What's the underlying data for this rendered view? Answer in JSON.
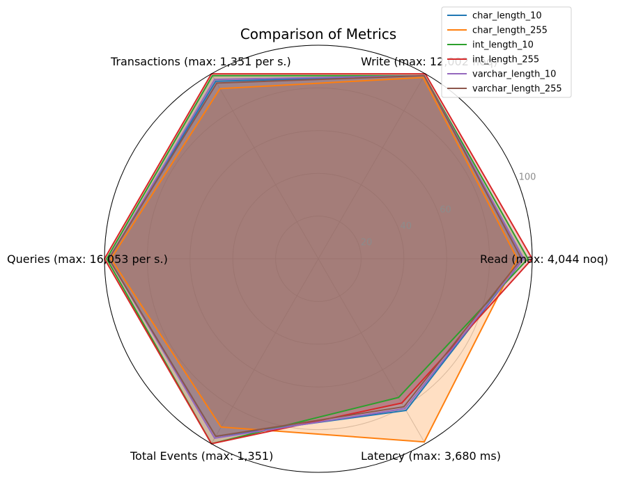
{
  "chart_data": {
    "type": "radar",
    "title": "Comparison of Metrics",
    "axes": [
      "Read (max: 4,044 noq)",
      "Write (max: 12,002 noq)",
      "Transactions (max: 1,351 per s.)",
      "Queries (max: 16,053 per s.)",
      "Total Events (max: 1,351)",
      "Latency (max: 3,680 ms)"
    ],
    "r_ticks": [
      20,
      40,
      60,
      100
    ],
    "rlim": [
      0,
      100
    ],
    "grid": true,
    "legend_position": "top-right",
    "series": [
      {
        "name": "char_length_10",
        "color": "#1f77b4",
        "values": [
          96,
          99,
          96,
          98,
          96,
          82
        ]
      },
      {
        "name": "char_length_255",
        "color": "#ff7f0e",
        "values": [
          93,
          98,
          92,
          97,
          91,
          99
        ]
      },
      {
        "name": "int_length_10",
        "color": "#2ca02c",
        "values": [
          98,
          99,
          99,
          99,
          100,
          75
        ]
      },
      {
        "name": "int_length_255",
        "color": "#d62728",
        "values": [
          100,
          100,
          100,
          100,
          100,
          78
        ]
      },
      {
        "name": "varchar_length_10",
        "color": "#9467bd",
        "values": [
          96,
          99,
          97,
          98,
          97,
          81
        ]
      },
      {
        "name": "varchar_length_255",
        "color": "#8c564b",
        "values": [
          95,
          99,
          95,
          98,
          96,
          80
        ]
      }
    ]
  }
}
